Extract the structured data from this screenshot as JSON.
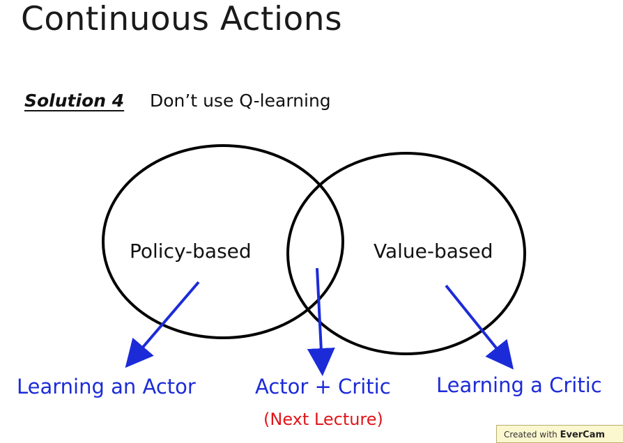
{
  "slide": {
    "title": "Continuous Actions",
    "solution_label": "Solution 4",
    "solution_text": "Don’t use Q-learning"
  },
  "diagram": {
    "left_set": "Policy-based",
    "right_set": "Value-based",
    "targets": {
      "left": "Learning an Actor",
      "center": "Actor + Critic",
      "center_note": "(Next Lecture)",
      "right": "Learning a Critic"
    },
    "colors": {
      "outline": "#000000",
      "arrow": "#1c2bd8",
      "blue_text": "#1c2bd8",
      "note_text": "#e0161b"
    }
  },
  "watermark": {
    "prefix": "Created with",
    "brand": "EverCam"
  }
}
